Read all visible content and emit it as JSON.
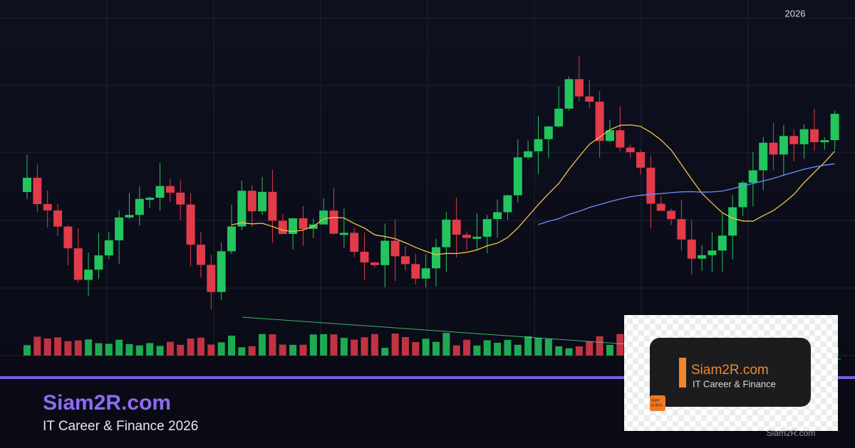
{
  "header": {
    "year": "2026"
  },
  "brand": {
    "name": "Siam2R.com",
    "tagline": "IT Career & Finance 2026"
  },
  "logo": {
    "name": "Siam2R.com",
    "tagline": "IT Career & Finance",
    "icon": [
      "Siam",
      "to Rich"
    ]
  },
  "watermark": "Siam2R.com"
}
